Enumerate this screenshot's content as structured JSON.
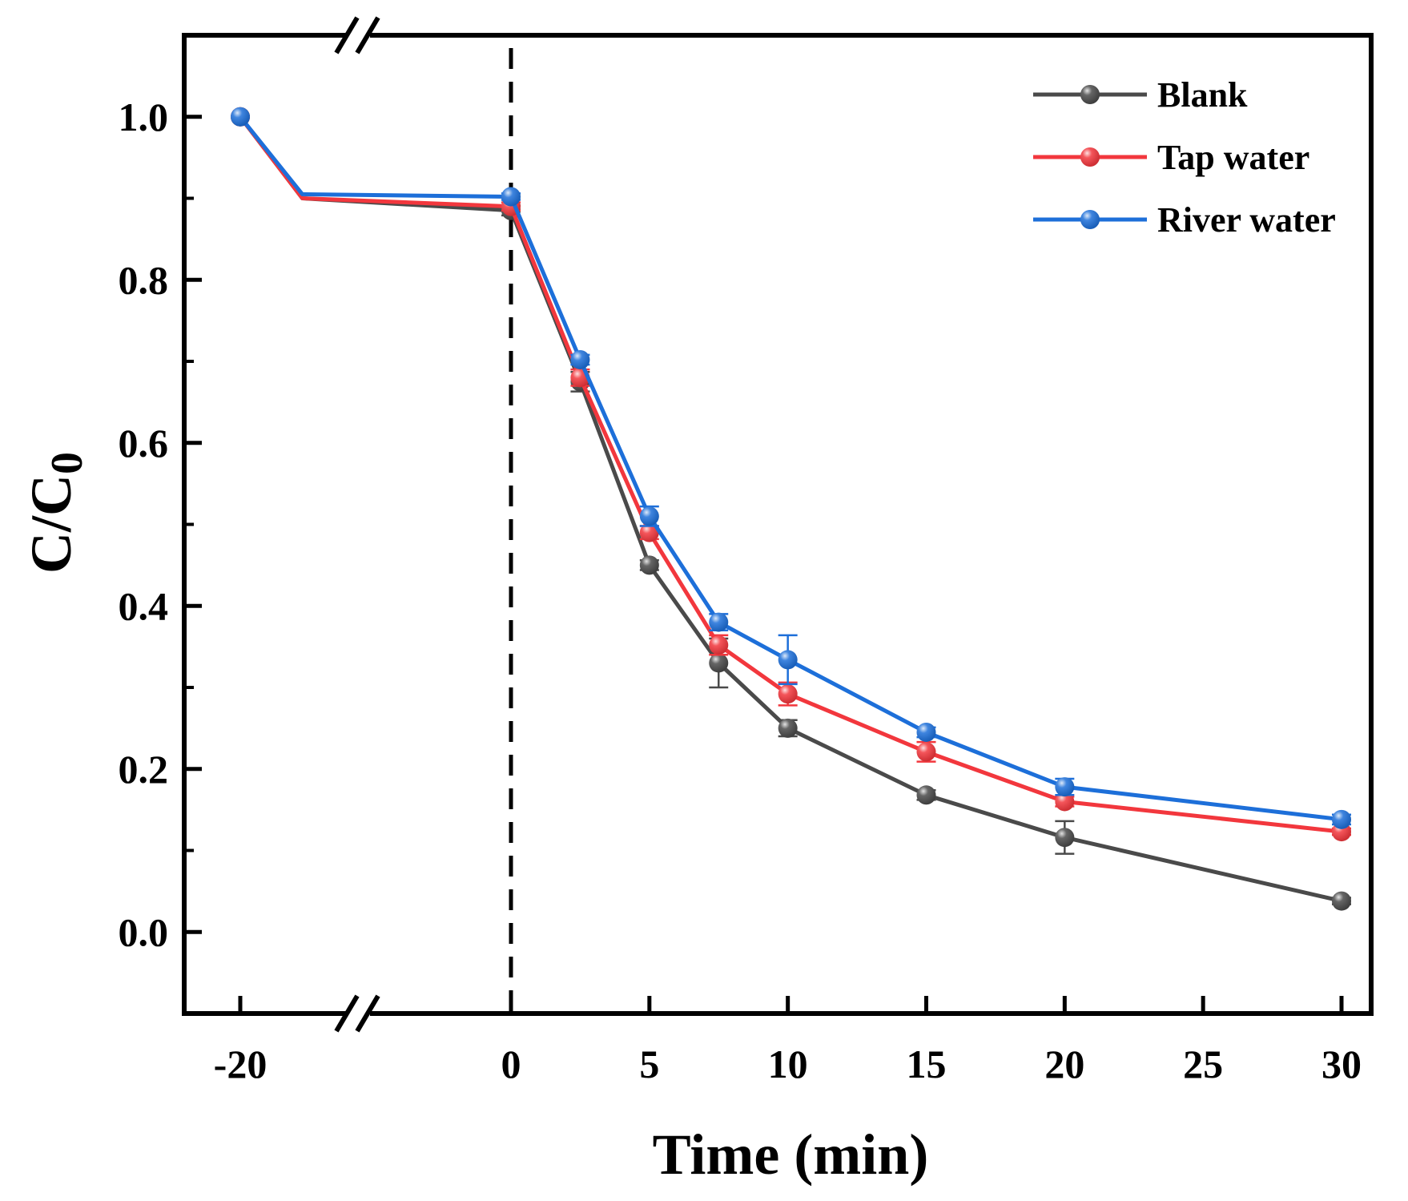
{
  "chart_data": {
    "type": "line",
    "title": "",
    "xlabel": "Time (min)",
    "ylabel_main": "C/C",
    "ylabel_sub": "0",
    "x_axis_break": true,
    "xticks": [
      -20,
      0,
      5,
      10,
      15,
      20,
      25,
      30
    ],
    "xtick_labels": [
      "-20",
      "0",
      "5",
      "10",
      "15",
      "20",
      "25",
      "30"
    ],
    "yticks": [
      0.0,
      0.2,
      0.4,
      0.6,
      0.8,
      1.0
    ],
    "ytick_labels": [
      "0.0",
      "0.2",
      "0.4",
      "0.6",
      "0.8",
      "1.0"
    ],
    "ylim": [
      -0.1,
      1.1
    ],
    "reference_line": {
      "x": 0,
      "style": "dashed"
    },
    "legend_position": "top-right",
    "grid": false,
    "x": [
      -20,
      -10,
      0,
      2.5,
      5,
      7.5,
      10,
      15,
      20,
      30
    ],
    "series": [
      {
        "name": "Blank",
        "color": "#4a4a4a",
        "values": [
          1.0,
          0.9,
          0.885,
          0.675,
          0.45,
          0.33,
          0.25,
          0.168,
          0.116,
          0.038
        ],
        "errors": [
          0,
          0,
          0.006,
          0.012,
          0.006,
          0.03,
          0.01,
          0.006,
          0.02,
          0.004
        ]
      },
      {
        "name": "Tap water",
        "color": "#f2373d",
        "values": [
          1.0,
          0.9,
          0.89,
          0.68,
          0.49,
          0.352,
          0.292,
          0.221,
          0.16,
          0.123
        ],
        "errors": [
          0,
          0,
          0.005,
          0.01,
          0.008,
          0.012,
          0.014,
          0.012,
          0.006,
          0.004
        ]
      },
      {
        "name": "River water",
        "color": "#1d6fd9",
        "values": [
          1.0,
          0.905,
          0.902,
          0.702,
          0.51,
          0.38,
          0.334,
          0.245,
          0.178,
          0.138
        ],
        "errors": [
          0,
          0,
          0.004,
          0.006,
          0.012,
          0.01,
          0.03,
          0.006,
          0.01,
          0.006
        ]
      }
    ]
  }
}
